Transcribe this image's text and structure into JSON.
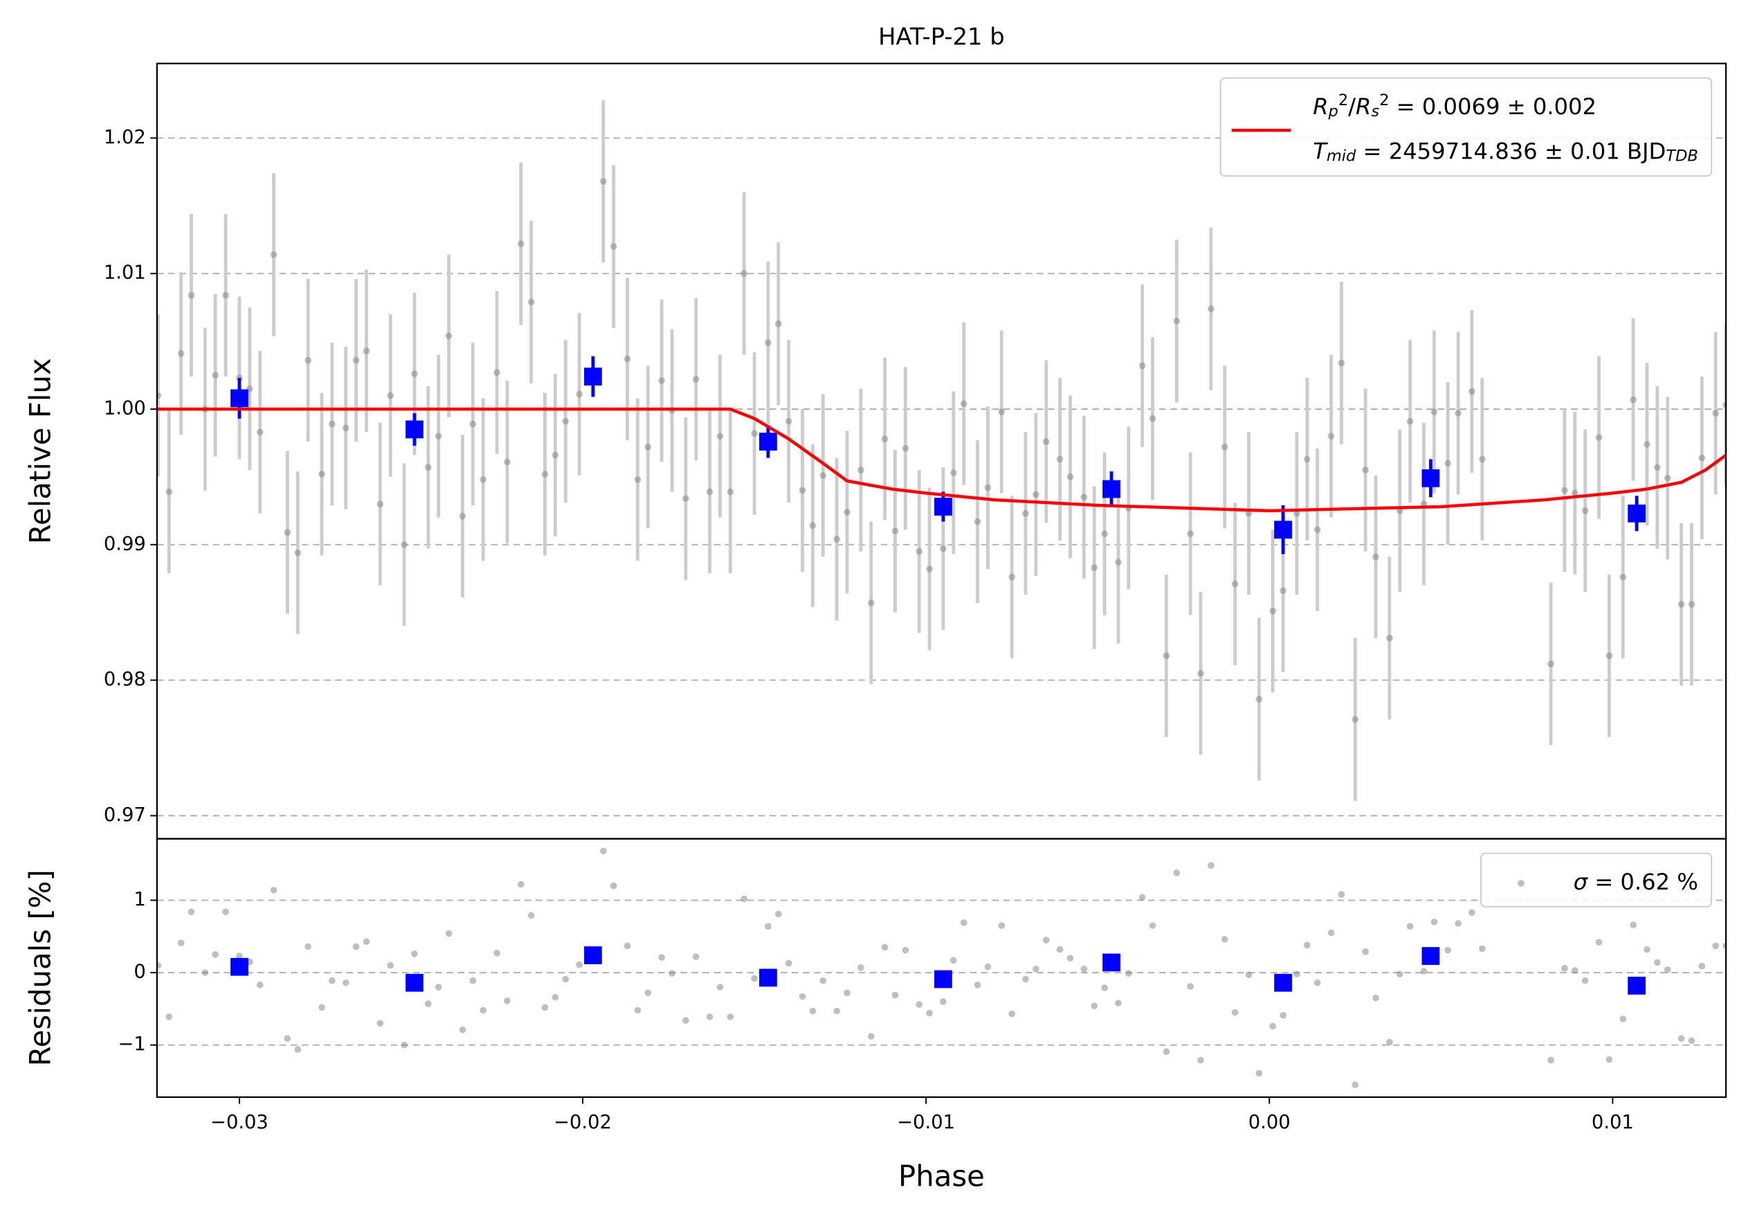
{
  "chart_data": [
    {
      "type": "scatter",
      "title": "HAT-P-21 b",
      "y_label": "Relative Flux",
      "xlim": [
        -0.0324,
        0.0133
      ],
      "ylim": [
        0.9683,
        1.0255
      ],
      "yticks": [
        0.97,
        0.98,
        0.99,
        {
          "value": 1,
          "label": "1.00"
        },
        1.01,
        1.02
      ],
      "grid": true,
      "legend": "upper right",
      "series": [
        {
          "marker": "circle",
          "color": "#808080",
          "errcolor": "#cccccc",
          "yerr": 0.006,
          "x": [
            -0.03237,
            -0.03205,
            -0.0317,
            -0.0314,
            -0.031,
            -0.0307,
            -0.0304,
            -0.03,
            -0.0297,
            -0.0294,
            -0.029,
            -0.0286,
            -0.0283,
            -0.028,
            -0.0276,
            -0.0273,
            -0.0269,
            -0.0266,
            -0.0263,
            -0.0259,
            -0.0256,
            -0.0252,
            -0.0249,
            -0.0245,
            -0.0242,
            -0.0239,
            -0.0235,
            -0.0232,
            -0.0229,
            -0.0225,
            -0.0222,
            -0.0218,
            -0.0215,
            -0.0211,
            -0.0208,
            -0.0205,
            -0.0201,
            -0.0194,
            -0.0191,
            -0.0187,
            -0.0184,
            -0.0181,
            -0.0177,
            -0.0174,
            -0.017,
            -0.0167,
            -0.0163,
            -0.016,
            -0.0157,
            -0.0153,
            -0.015,
            -0.0146,
            -0.0143,
            -0.014,
            -0.0136,
            -0.0133,
            -0.013,
            -0.0126,
            -0.0123,
            -0.0119,
            -0.0116,
            -0.0112,
            -0.0109,
            -0.0106,
            -0.0102,
            -0.0099,
            -0.0095,
            -0.0092,
            -0.0089,
            -0.0085,
            -0.0082,
            -0.0078,
            -0.0075,
            -0.0071,
            -0.0068,
            -0.0065,
            -0.0061,
            -0.0058,
            -0.0054,
            -0.0051,
            -0.0048,
            -0.0044,
            -0.0041,
            -0.0037,
            -0.0034,
            -0.003,
            -0.0027,
            -0.0023,
            -0.002,
            -0.0017,
            -0.0013,
            -0.001,
            -0.0006,
            -0.0003,
            0.0001,
            0.0004,
            0.0008,
            0.0011,
            0.0014,
            0.0018,
            0.0021,
            0.0025,
            0.0028,
            0.0031,
            0.0035,
            0.0038,
            0.0041,
            0.0045,
            0.0048,
            0.0052,
            0.0055,
            0.0059,
            0.0062,
            0.0082,
            0.0086,
            0.0089,
            0.0092,
            0.0096,
            0.0099,
            0.0103,
            0.0106,
            0.011,
            0.0113,
            0.0116,
            0.012,
            0.0123,
            0.0126,
            0.013,
            0.0133
          ],
          "y": [
            1.001,
            0.9939,
            1.0041,
            1.0084,
            1.0,
            1.0025,
            1.0084,
            1.0023,
            1.0015,
            0.9983,
            1.0114,
            0.9909,
            0.9894,
            1.0036,
            0.9952,
            0.9989,
            0.9986,
            1.0036,
            1.0043,
            0.993,
            1.001,
            0.99,
            1.0026,
            0.9957,
            0.998,
            1.0054,
            0.9921,
            0.9989,
            0.9948,
            1.0027,
            0.9961,
            1.0122,
            1.0079,
            0.9952,
            0.9966,
            0.9991,
            1.0011,
            1.0168,
            1.012,
            1.0037,
            0.9948,
            0.9972,
            1.0021,
            0.9999,
            0.9934,
            1.0022,
            0.9939,
            0.998,
            0.9939,
            1.01,
            0.9982,
            1.0049,
            1.0063,
            0.9991,
            0.994,
            0.9914,
            0.9951,
            0.9904,
            0.9924,
            0.9955,
            0.9857,
            0.9978,
            0.991,
            0.9971,
            0.9895,
            0.9882,
            0.9897,
            0.9953,
            1.0004,
            0.9917,
            0.9942,
            0.9998,
            0.9876,
            0.9923,
            0.9937,
            0.9976,
            0.9963,
            0.995,
            0.9935,
            0.9883,
            0.9908,
            0.9887,
            0.9927,
            1.0032,
            0.9993,
            0.9818,
            1.0065,
            0.9908,
            0.9805,
            1.0074,
            0.9972,
            0.9871,
            0.9923,
            0.9786,
            0.9851,
            0.9866,
            0.9923,
            0.9963,
            0.9911,
            0.998,
            1.0034,
            0.9771,
            0.9955,
            0.9891,
            0.9831,
            0.9925,
            0.9991,
            0.993,
            0.9998,
            0.996,
            0.9997,
            1.0013,
            0.9963,
            0.9812,
            0.994,
            0.9938,
            0.9925,
            0.9979,
            0.9818,
            0.9876,
            1.0007,
            0.9974,
            0.9957,
            0.9949,
            0.9856,
            0.9856,
            0.9964,
            0.9997,
            1.0003
          ]
        },
        {
          "marker": "square",
          "color": "#0000ff",
          "x": [
            -0.03,
            -0.0249,
            -0.0197,
            -0.0146,
            -0.0095,
            -0.0046,
            0.0004,
            0.0047,
            0.0107
          ],
          "y": [
            1.0008,
            0.9985,
            1.0024,
            0.9976,
            0.9928,
            0.9941,
            0.9911,
            0.9949,
            0.9923
          ],
          "yerr": [
            0.0015,
            0.0012,
            0.0015,
            0.0012,
            0.0011,
            0.0013,
            0.0018,
            0.0014,
            0.0013
          ]
        },
        {
          "kind": "line",
          "color": "#ff0000",
          "x": [
            -0.0324,
            -0.0157,
            -0.015,
            -0.014,
            -0.013,
            -0.0123,
            -0.011,
            -0.01,
            -0.008,
            -0.005,
            0.0,
            0.005,
            0.008,
            0.01,
            0.011,
            0.012,
            0.0127,
            0.0133
          ],
          "y": [
            1.0,
            1.0,
            0.9993,
            0.9978,
            0.996,
            0.9947,
            0.9941,
            0.9938,
            0.9933,
            0.9929,
            0.9925,
            0.9928,
            0.9933,
            0.9938,
            0.9941,
            0.9946,
            0.9955,
            0.9966
          ],
          "legend_label": [
            [
              {
                "text": "R",
                "style": "italic"
              },
              {
                "text": "p",
                "style": "sub"
              },
              {
                "text": "2",
                "style": "sup"
              },
              {
                "text": "/"
              },
              {
                "text": "R",
                "style": "italic"
              },
              {
                "text": "s",
                "style": "sub"
              },
              {
                "text": "2",
                "style": "sup"
              },
              {
                "text": " = 0.0069 ± 0.002"
              }
            ],
            [
              {
                "text": "T",
                "style": "italic"
              },
              {
                "text": "mid",
                "style": "sub"
              },
              {
                "text": " = 2459714.836 ± 0.01 BJD"
              },
              {
                "text": "TDB",
                "style": "sub"
              }
            ]
          ]
        }
      ]
    },
    {
      "type": "scatter",
      "y_label": "Residuals [%]",
      "x_label": "Phase",
      "xlim": [
        -0.0324,
        0.0133
      ],
      "ylim": [
        -1.72,
        1.85
      ],
      "xticks": [
        {
          "value": -0.03,
          "label": "−0.03"
        },
        {
          "value": -0.02,
          "label": "−0.02"
        },
        {
          "value": -0.01,
          "label": "−0.01"
        },
        {
          "value": 0,
          "label": "0.00"
        },
        0.01
      ],
      "yticks": [
        {
          "value": -1,
          "label": "−1"
        },
        0,
        1
      ],
      "grid": true,
      "legend": "upper right",
      "series": [
        {
          "marker": "circle",
          "color": "#808080",
          "x": [
            -0.03237,
            -0.03205,
            -0.0317,
            -0.0314,
            -0.031,
            -0.0307,
            -0.0304,
            -0.03,
            -0.0297,
            -0.0294,
            -0.029,
            -0.0286,
            -0.0283,
            -0.028,
            -0.0276,
            -0.0273,
            -0.0269,
            -0.0266,
            -0.0263,
            -0.0259,
            -0.0256,
            -0.0252,
            -0.0249,
            -0.0245,
            -0.0242,
            -0.0239,
            -0.0235,
            -0.0232,
            -0.0229,
            -0.0225,
            -0.0222,
            -0.0218,
            -0.0215,
            -0.0211,
            -0.0208,
            -0.0205,
            -0.0201,
            -0.0194,
            -0.0191,
            -0.0187,
            -0.0184,
            -0.0181,
            -0.0177,
            -0.0174,
            -0.017,
            -0.0167,
            -0.0163,
            -0.016,
            -0.0157,
            -0.0153,
            -0.015,
            -0.0146,
            -0.0143,
            -0.014,
            -0.0136,
            -0.0133,
            -0.013,
            -0.0126,
            -0.0123,
            -0.0119,
            -0.0116,
            -0.0112,
            -0.0109,
            -0.0106,
            -0.0102,
            -0.0099,
            -0.0095,
            -0.0092,
            -0.0089,
            -0.0085,
            -0.0082,
            -0.0078,
            -0.0075,
            -0.0071,
            -0.0068,
            -0.0065,
            -0.0061,
            -0.0058,
            -0.0054,
            -0.0051,
            -0.0048,
            -0.0044,
            -0.0041,
            -0.0037,
            -0.0034,
            -0.003,
            -0.0027,
            -0.0023,
            -0.002,
            -0.0017,
            -0.0013,
            -0.001,
            -0.0006,
            -0.0003,
            0.0001,
            0.0004,
            0.0008,
            0.0011,
            0.0014,
            0.0018,
            0.0021,
            0.0025,
            0.0028,
            0.0031,
            0.0035,
            0.0038,
            0.0041,
            0.0045,
            0.0048,
            0.0052,
            0.0055,
            0.0059,
            0.0062,
            0.0082,
            0.0086,
            0.0089,
            0.0092,
            0.0096,
            0.0099,
            0.0103,
            0.0106,
            0.011,
            0.0113,
            0.0116,
            0.012,
            0.0123,
            0.0126,
            0.013,
            0.0133
          ],
          "y": [
            0.1,
            -0.61,
            0.41,
            0.84,
            0.0,
            0.25,
            0.84,
            0.23,
            0.15,
            -0.17,
            1.14,
            -0.91,
            -1.06,
            0.36,
            -0.48,
            -0.11,
            -0.14,
            0.36,
            0.43,
            -0.7,
            0.1,
            -1.0,
            0.26,
            -0.43,
            -0.2,
            0.54,
            -0.79,
            -0.11,
            -0.52,
            0.27,
            -0.39,
            1.22,
            0.79,
            -0.48,
            -0.34,
            -0.09,
            0.11,
            1.68,
            1.2,
            0.37,
            -0.52,
            -0.28,
            0.21,
            -0.01,
            -0.66,
            0.22,
            -0.61,
            -0.2,
            -0.61,
            1.02,
            -0.08,
            0.64,
            0.81,
            0.13,
            -0.33,
            -0.53,
            -0.11,
            -0.53,
            -0.28,
            0.07,
            -0.88,
            0.35,
            -0.31,
            0.31,
            -0.44,
            -0.56,
            -0.4,
            0.17,
            0.69,
            -0.17,
            0.08,
            0.65,
            -0.57,
            -0.09,
            0.05,
            0.45,
            0.32,
            0.2,
            0.05,
            -0.46,
            -0.21,
            -0.42,
            -0.01,
            1.04,
            0.65,
            -1.09,
            1.38,
            -0.19,
            -1.21,
            1.48,
            0.46,
            -0.55,
            -0.03,
            -1.39,
            -0.74,
            -0.59,
            -0.02,
            0.38,
            -0.14,
            0.55,
            1.08,
            -1.55,
            0.29,
            -0.35,
            -0.96,
            -0.02,
            0.64,
            0.02,
            0.7,
            0.31,
            0.68,
            0.83,
            0.33,
            -1.21,
            0.06,
            0.03,
            -0.11,
            0.42,
            -1.2,
            -0.64,
            0.66,
            0.32,
            0.14,
            0.04,
            -0.91,
            -0.94,
            0.09,
            0.37,
            0.37
          ],
          "legend_label": [
            [
              {
                "text": "σ",
                "style": "italic"
              },
              {
                "text": " = 0.62 %"
              }
            ]
          ]
        },
        {
          "marker": "square",
          "color": "#0000ff",
          "x": [
            -0.03,
            -0.0249,
            -0.0197,
            -0.0146,
            -0.0095,
            -0.0046,
            0.0004,
            0.0047,
            0.0107
          ],
          "y": [
            0.08,
            -0.14,
            0.24,
            -0.07,
            -0.09,
            0.14,
            -0.14,
            0.23,
            -0.18
          ]
        }
      ]
    }
  ]
}
